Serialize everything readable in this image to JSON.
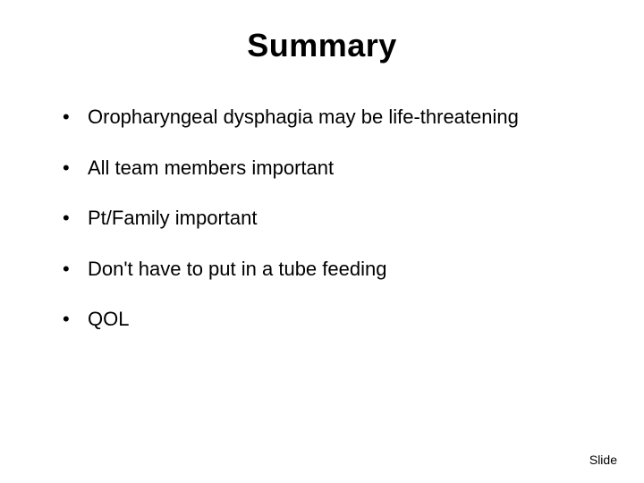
{
  "slide": {
    "title": "Summary",
    "bullets": [
      "Oropharyngeal dysphagia may be life-threatening",
      "All team members important",
      "Pt/Family important",
      "Don't have to put in a tube feeding",
      "QOL"
    ],
    "footer": "Slide"
  },
  "style": {
    "background_color": "#ffffff",
    "text_color": "#000000",
    "title_fontsize": 36,
    "title_fontfamily": "Arial",
    "title_weight": "bold",
    "body_fontsize": 22,
    "body_fontfamily": "Verdana",
    "footer_fontsize": 14,
    "bullet_spacing": 28
  }
}
